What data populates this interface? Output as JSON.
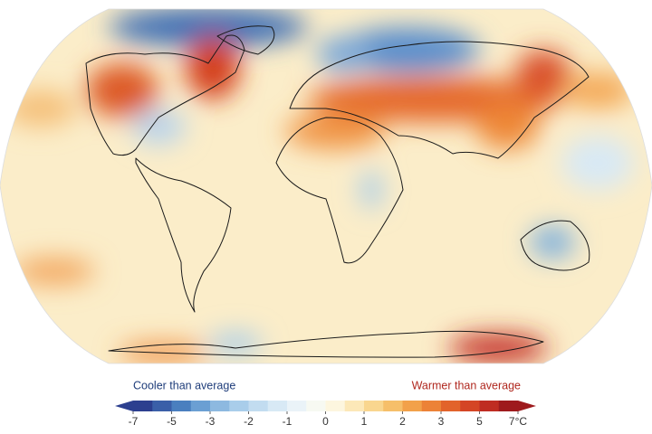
{
  "legend": {
    "cooler_label": "Cooler than average",
    "warmer_label": "Warmer than average",
    "ticks": [
      -7,
      -5,
      -3,
      -2,
      -1,
      0,
      1,
      2,
      3,
      5,
      {
        "value": 7,
        "label": "7°C"
      }
    ],
    "colors": [
      "#2c3f8f",
      "#3a5fa8",
      "#4a7fbf",
      "#6b9fd3",
      "#8db9e0",
      "#a9cdea",
      "#c2dcf0",
      "#d8e9f5",
      "#eaf3f8",
      "#f7f9f2",
      "#fdf6df",
      "#fce8b8",
      "#f9d68f",
      "#f6bf6a",
      "#f2a14a",
      "#ec8237",
      "#e2632b",
      "#d44525",
      "#bf2c22",
      "#9e1a1d"
    ]
  }
}
